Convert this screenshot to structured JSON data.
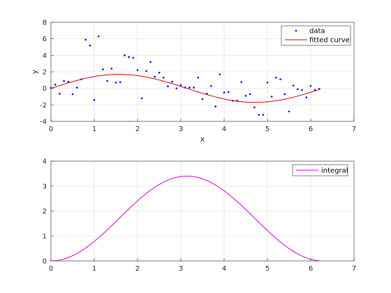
{
  "chart_data": [
    {
      "type": "scatter+line",
      "xlabel": "x",
      "ylabel": "y",
      "xlim": [
        0,
        7
      ],
      "ylim": [
        -4,
        8
      ],
      "xticks": [
        0,
        1,
        2,
        3,
        4,
        5,
        6,
        7
      ],
      "yticks": [
        -4,
        -2,
        0,
        2,
        4,
        6,
        8
      ],
      "grid": true,
      "legend": "top-right",
      "series": [
        {
          "name": "data",
          "style": "points",
          "color": "#0000ff",
          "x": [
            0.0,
            0.1,
            0.2,
            0.3,
            0.4,
            0.5,
            0.6,
            0.7,
            0.8,
            0.9,
            1.0,
            1.1,
            1.2,
            1.3,
            1.4,
            1.5,
            1.6,
            1.7,
            1.8,
            1.9,
            2.0,
            2.1,
            2.2,
            2.3,
            2.4,
            2.5,
            2.6,
            2.7,
            2.8,
            2.9,
            3.0,
            3.1,
            3.2,
            3.3,
            3.4,
            3.5,
            3.6,
            3.7,
            3.8,
            3.9,
            4.0,
            4.1,
            4.2,
            4.3,
            4.4,
            4.5,
            4.6,
            4.7,
            4.8,
            4.9,
            5.0,
            5.1,
            5.2,
            5.3,
            5.4,
            5.5,
            5.6,
            5.7,
            5.8,
            5.9,
            6.0,
            6.1,
            6.2
          ],
          "y": [
            0.05,
            0.45,
            -0.65,
            0.9,
            0.8,
            -0.7,
            0.1,
            1.1,
            5.9,
            5.2,
            -1.4,
            6.3,
            2.3,
            0.9,
            2.4,
            0.7,
            0.75,
            4.0,
            3.8,
            3.7,
            2.2,
            -1.2,
            2.1,
            3.2,
            1.4,
            1.9,
            1.3,
            0.25,
            0.8,
            0.0,
            0.4,
            0.1,
            0.1,
            0.1,
            1.3,
            -1.3,
            -0.65,
            0.3,
            -2.2,
            1.7,
            -0.5,
            -0.45,
            -1.5,
            -1.5,
            0.75,
            -0.9,
            -0.7,
            -2.3,
            -3.2,
            -3.2,
            0.7,
            -1.0,
            1.3,
            1.1,
            -0.7,
            -2.8,
            0.35,
            -0.1,
            -0.2,
            -1.1,
            0.3,
            -0.2,
            -0.05
          ]
        },
        {
          "name": "fitted curve",
          "style": "line",
          "color": "#cc0000",
          "function": "1.7*sin(x)",
          "x_range": [
            0,
            6.2
          ]
        }
      ]
    },
    {
      "type": "line",
      "xlim": [
        0,
        7
      ],
      "ylim": [
        0,
        4
      ],
      "xticks": [
        0,
        1,
        2,
        3,
        4,
        5,
        6,
        7
      ],
      "yticks": [
        0,
        1,
        2,
        3,
        4
      ],
      "grid": true,
      "legend": "top-right",
      "series": [
        {
          "name": "integral",
          "style": "line",
          "color": "#cc00cc",
          "function": "1.7*(1-cos(x))",
          "x_range": [
            0,
            6.2
          ]
        }
      ]
    }
  ]
}
